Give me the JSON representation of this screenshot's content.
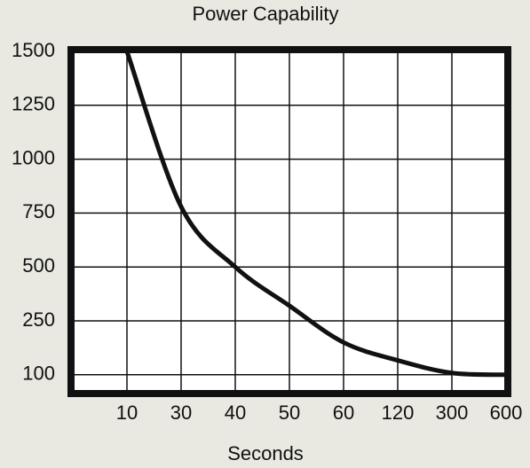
{
  "chart_data": {
    "type": "line",
    "title": "Power Capability",
    "x_label": "Seconds",
    "categories": [
      null,
      "10",
      "30",
      "40",
      "50",
      "60",
      "120",
      "300",
      "600"
    ],
    "series": [
      {
        "name": null,
        "color": "#111111",
        "values": [
          null,
          1500,
          780,
          500,
          320,
          190,
          140,
          105,
          100
        ]
      }
    ],
    "yticks": [
      1500,
      1250,
      1000,
      750,
      500,
      250,
      100
    ],
    "y_scale": "evenly-spaced-ticks",
    "grid": true
  }
}
